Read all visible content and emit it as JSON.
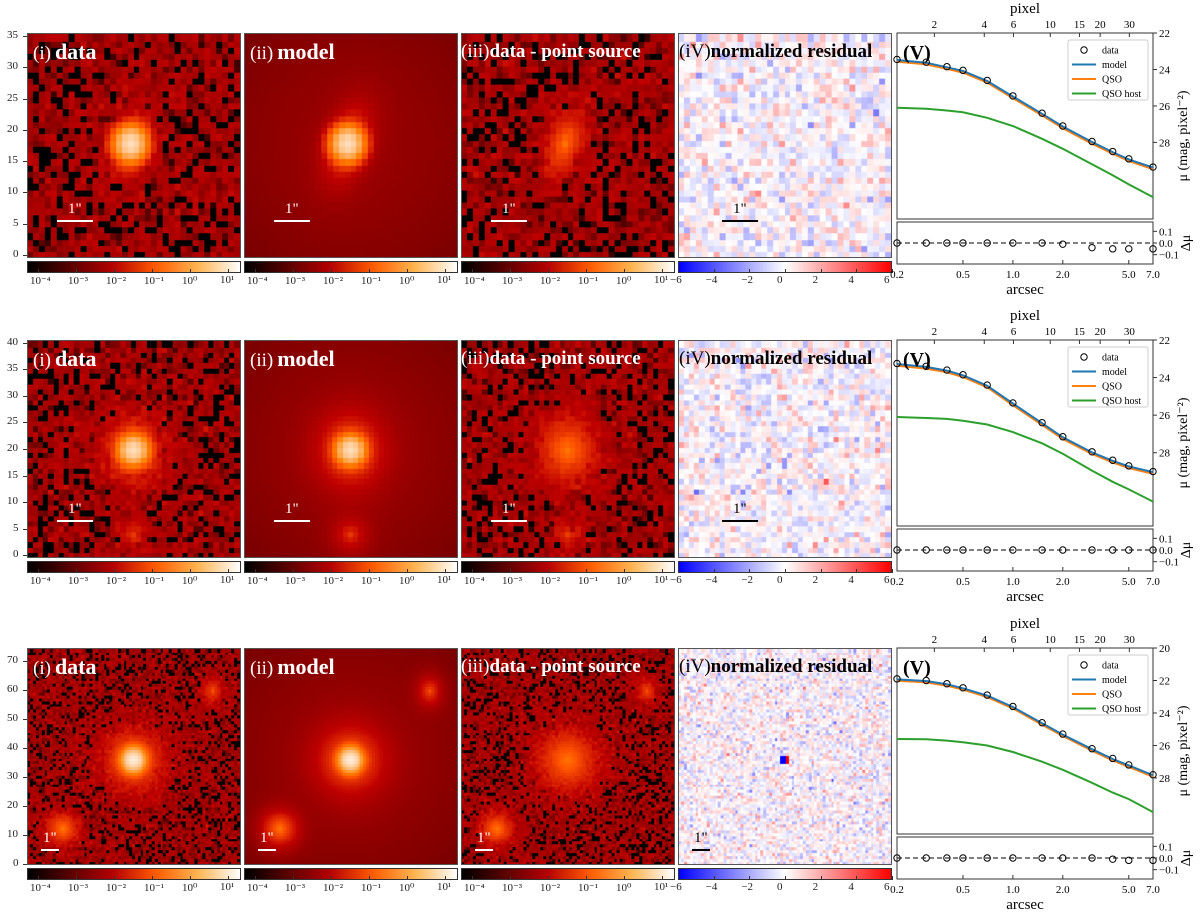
{
  "panel_titles": [
    {
      "num": "(i)",
      "text": "data"
    },
    {
      "num": "(ii)",
      "text": "model"
    },
    {
      "num": "(iii)",
      "text": "data - point source"
    },
    {
      "num": "(iV)",
      "text": "normalized residual"
    },
    {
      "num": "(V)",
      "text": ""
    }
  ],
  "scale_bar_label": "1\"",
  "colorbars": {
    "log_ticks": [
      "10⁻⁴",
      "10⁻³",
      "10⁻²",
      "10⁻¹",
      "10⁰",
      "10¹"
    ],
    "residual_ticks": [
      "−6",
      "−4",
      "−2",
      "0",
      "2",
      "4",
      "6"
    ],
    "log_colormap": "gist_heat",
    "residual_colormap": "bwr"
  },
  "colors": {
    "model": "#1f77b4",
    "QSO": "#ff7f0e",
    "QSO host": "#2ca02c",
    "data": "#000000"
  },
  "chart_data": [
    {
      "type": "line",
      "image_yticks": [
        "0",
        "5",
        "10",
        "15",
        "20",
        "25",
        "30",
        "35"
      ],
      "xlabel": "arcsec",
      "x2label": "pixel",
      "ylabel": "μ (mag, pixel⁻²)",
      "res_ylabel": "Δμ",
      "xscale": "log",
      "xlim": [
        0.2,
        7.0
      ],
      "xticks": [
        "0.2",
        "0.5",
        "1.0",
        "2.0",
        "5.0",
        "7.0"
      ],
      "x2ticks": [
        "2",
        "4",
        "6",
        "10",
        "15",
        "20",
        "30"
      ],
      "ylim": [
        32.2,
        22
      ],
      "yticks": [
        "22",
        "24",
        "26",
        "28"
      ],
      "res_ylim": [
        -0.18,
        0.18
      ],
      "res_yticks": [
        "0.1",
        "0.0",
        "−0.1"
      ],
      "legend": {
        "position": "top-right",
        "entries": [
          "data",
          "model",
          "QSO",
          "QSO host"
        ]
      },
      "x": [
        0.2,
        0.3,
        0.4,
        0.5,
        0.7,
        1.0,
        1.5,
        2.0,
        3.0,
        4.0,
        5.0,
        7.0
      ],
      "series": [
        {
          "name": "data",
          "values": [
            23.45,
            23.6,
            23.85,
            24.05,
            24.6,
            25.45,
            26.4,
            27.1,
            27.95,
            28.5,
            28.9,
            29.35
          ]
        },
        {
          "name": "model",
          "values": [
            23.48,
            23.63,
            23.88,
            24.08,
            24.63,
            25.48,
            26.43,
            27.13,
            27.98,
            28.53,
            28.93,
            29.38
          ]
        },
        {
          "name": "QSO",
          "values": [
            23.57,
            23.72,
            23.97,
            24.17,
            24.72,
            25.57,
            26.52,
            27.22,
            28.07,
            28.62,
            29.02,
            29.47
          ]
        },
        {
          "name": "QSO host",
          "values": [
            26.1,
            26.15,
            26.25,
            26.35,
            26.65,
            27.1,
            27.8,
            28.35,
            29.2,
            29.8,
            30.3,
            31.0
          ]
        }
      ],
      "residual": [
        0,
        0,
        0,
        0,
        0,
        0,
        0,
        -0.01,
        -0.04,
        -0.05,
        -0.05,
        -0.05
      ]
    },
    {
      "type": "line",
      "image_yticks": [
        "0",
        "5",
        "10",
        "15",
        "20",
        "25",
        "30",
        "35",
        "40"
      ],
      "xlabel": "arcsec",
      "x2label": "pixel",
      "ylabel": "μ (mag, pixel⁻²)",
      "res_ylabel": "Δμ",
      "xscale": "log",
      "xlim": [
        0.2,
        7.0
      ],
      "xticks": [
        "0.2",
        "0.5",
        "1.0",
        "2.0",
        "5.0",
        "7.0"
      ],
      "x2ticks": [
        "2",
        "4",
        "6",
        "10",
        "15",
        "20",
        "30"
      ],
      "ylim": [
        31.9,
        22
      ],
      "yticks": [
        "22",
        "24",
        "26",
        "28"
      ],
      "res_ylim": [
        -0.18,
        0.18
      ],
      "res_yticks": [
        "0.1",
        "0.0",
        "−0.1"
      ],
      "legend": {
        "position": "top-right",
        "entries": [
          "data",
          "model",
          "QSO",
          "QSO host"
        ]
      },
      "x": [
        0.2,
        0.3,
        0.4,
        0.5,
        0.7,
        1.0,
        1.5,
        2.0,
        3.0,
        4.0,
        5.0,
        7.0
      ],
      "series": [
        {
          "name": "data",
          "values": [
            23.25,
            23.4,
            23.6,
            23.85,
            24.4,
            25.35,
            26.4,
            27.15,
            27.95,
            28.4,
            28.7,
            29.0
          ]
        },
        {
          "name": "model",
          "values": [
            23.28,
            23.43,
            23.63,
            23.88,
            24.43,
            25.38,
            26.43,
            27.18,
            27.98,
            28.43,
            28.73,
            29.03
          ]
        },
        {
          "name": "QSO",
          "values": [
            23.37,
            23.52,
            23.72,
            23.97,
            24.52,
            25.47,
            26.52,
            27.27,
            28.07,
            28.52,
            28.82,
            29.12
          ]
        },
        {
          "name": "QSO host",
          "values": [
            26.1,
            26.15,
            26.2,
            26.3,
            26.5,
            26.9,
            27.5,
            28.05,
            28.95,
            29.55,
            29.95,
            30.6
          ]
        }
      ],
      "residual": [
        0,
        0,
        0,
        0,
        0,
        0,
        0,
        0,
        0,
        0,
        0,
        0
      ]
    },
    {
      "type": "line",
      "image_yticks": [
        "0",
        "10",
        "20",
        "30",
        "40",
        "50",
        "60",
        "70"
      ],
      "xlabel": "arcsec",
      "x2label": "pixel",
      "ylabel": "μ (mag, pixel⁻²)",
      "res_ylabel": "Δμ",
      "xscale": "log",
      "xlim": [
        0.2,
        7.0
      ],
      "xticks": [
        "0.2",
        "0.5",
        "1.0",
        "2.0",
        "5.0",
        "7.0"
      ],
      "x2ticks": [
        "2",
        "4",
        "6",
        "10",
        "15",
        "20",
        "30"
      ],
      "ylim": [
        31.45,
        20
      ],
      "yticks": [
        "20",
        "22",
        "24",
        "26",
        "28"
      ],
      "res_ylim": [
        -0.18,
        0.18
      ],
      "res_yticks": [
        "0.1",
        "0.0",
        "−0.1"
      ],
      "legend": {
        "position": "top-right",
        "entries": [
          "data",
          "model",
          "QSO",
          "QSO host"
        ]
      },
      "x": [
        0.2,
        0.3,
        0.4,
        0.5,
        0.7,
        1.0,
        1.5,
        2.0,
        3.0,
        4.0,
        5.0,
        7.0
      ],
      "series": [
        {
          "name": "data",
          "values": [
            21.9,
            22.0,
            22.2,
            22.45,
            22.9,
            23.6,
            24.6,
            25.3,
            26.2,
            26.8,
            27.2,
            27.8
          ]
        },
        {
          "name": "model",
          "values": [
            21.93,
            22.03,
            22.23,
            22.48,
            22.93,
            23.63,
            24.63,
            25.33,
            26.23,
            26.83,
            27.23,
            27.83
          ]
        },
        {
          "name": "QSO",
          "values": [
            22.02,
            22.12,
            22.32,
            22.57,
            23.02,
            23.72,
            24.72,
            25.42,
            26.32,
            26.92,
            27.32,
            27.92
          ]
        },
        {
          "name": "QSO host",
          "values": [
            25.6,
            25.62,
            25.7,
            25.8,
            26.0,
            26.4,
            27.0,
            27.5,
            28.3,
            28.9,
            29.3,
            30.1
          ]
        }
      ],
      "residual": [
        0,
        0,
        0,
        0,
        0,
        0,
        0,
        0,
        0,
        -0.01,
        -0.02,
        -0.02
      ]
    }
  ]
}
